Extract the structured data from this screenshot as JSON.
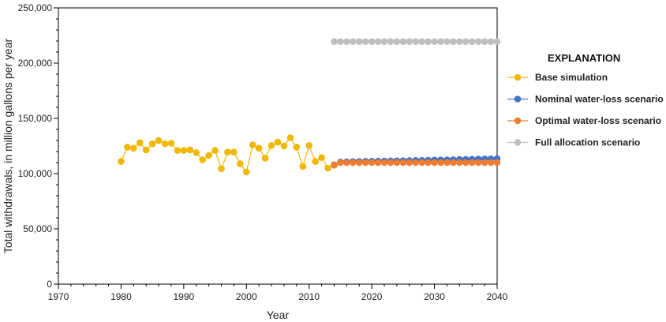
{
  "chart_data": {
    "type": "line",
    "xlabel": "Year",
    "ylabel": "Total withdrawals, in million gallons per year",
    "xlim": [
      1970,
      2040
    ],
    "ylim": [
      0,
      250000
    ],
    "x_ticks": [
      1970,
      1980,
      1990,
      2000,
      2010,
      2020,
      2030,
      2040
    ],
    "x_tick_labels": [
      "1970",
      "1980",
      "1990",
      "2000",
      "2010",
      "2020",
      "2030",
      "2040"
    ],
    "y_ticks": [
      0,
      50000,
      100000,
      150000,
      200000,
      250000
    ],
    "y_tick_labels": [
      "0",
      "50,000",
      "100,000",
      "150,000",
      "200,000",
      "250,000"
    ],
    "grid": false,
    "legend_title": "EXPLANATION",
    "legend_position": "right",
    "series": [
      {
        "name": "Base simulation",
        "color": "#f2b705",
        "points": [
          [
            1980,
            111000
          ],
          [
            1981,
            124000
          ],
          [
            1982,
            123000
          ],
          [
            1983,
            128000
          ],
          [
            1984,
            121500
          ],
          [
            1985,
            127000
          ],
          [
            1986,
            130000
          ],
          [
            1987,
            127000
          ],
          [
            1988,
            127500
          ],
          [
            1989,
            121000
          ],
          [
            1990,
            121000
          ],
          [
            1991,
            121500
          ],
          [
            1992,
            119000
          ],
          [
            1993,
            112500
          ],
          [
            1994,
            116500
          ],
          [
            1995,
            121000
          ],
          [
            1996,
            104500
          ],
          [
            1997,
            119500
          ],
          [
            1998,
            119500
          ],
          [
            1999,
            109000
          ],
          [
            2000,
            101500
          ],
          [
            2001,
            126000
          ],
          [
            2002,
            123000
          ],
          [
            2003,
            114000
          ],
          [
            2004,
            125500
          ],
          [
            2005,
            128500
          ],
          [
            2006,
            125000
          ],
          [
            2007,
            132500
          ],
          [
            2008,
            124000
          ],
          [
            2009,
            106500
          ],
          [
            2010,
            125500
          ],
          [
            2011,
            111000
          ],
          [
            2012,
            114500
          ],
          [
            2013,
            105000
          ],
          [
            2014,
            107500
          ]
        ]
      },
      {
        "name": "Nominal water-loss scenario",
        "color": "#4472c4",
        "points": [
          [
            2014,
            108000
          ],
          [
            2015,
            110500
          ],
          [
            2016,
            110700
          ],
          [
            2017,
            110900
          ],
          [
            2018,
            111000
          ],
          [
            2019,
            111100
          ],
          [
            2020,
            111200
          ],
          [
            2021,
            111300
          ],
          [
            2022,
            111400
          ],
          [
            2023,
            111500
          ],
          [
            2024,
            111600
          ],
          [
            2025,
            111700
          ],
          [
            2026,
            111800
          ],
          [
            2027,
            111900
          ],
          [
            2028,
            112000
          ],
          [
            2029,
            112100
          ],
          [
            2030,
            112300
          ],
          [
            2031,
            112400
          ],
          [
            2032,
            112500
          ],
          [
            2033,
            112600
          ],
          [
            2034,
            112800
          ],
          [
            2035,
            112900
          ],
          [
            2036,
            113000
          ],
          [
            2037,
            113200
          ],
          [
            2038,
            113300
          ],
          [
            2039,
            113400
          ],
          [
            2040,
            113500
          ]
        ]
      },
      {
        "name": "Optimal water-loss scenario",
        "color": "#ed7d31",
        "points": [
          [
            2014,
            108000
          ],
          [
            2015,
            110000
          ],
          [
            2016,
            110000
          ],
          [
            2017,
            110000
          ],
          [
            2018,
            110000
          ],
          [
            2019,
            110000
          ],
          [
            2020,
            110000
          ],
          [
            2021,
            110000
          ],
          [
            2022,
            110000
          ],
          [
            2023,
            110000
          ],
          [
            2024,
            110000
          ],
          [
            2025,
            110000
          ],
          [
            2026,
            110000
          ],
          [
            2027,
            110000
          ],
          [
            2028,
            110000
          ],
          [
            2029,
            110000
          ],
          [
            2030,
            110000
          ],
          [
            2031,
            110000
          ],
          [
            2032,
            110000
          ],
          [
            2033,
            110000
          ],
          [
            2034,
            110000
          ],
          [
            2035,
            110000
          ],
          [
            2036,
            110000
          ],
          [
            2037,
            110000
          ],
          [
            2038,
            110000
          ],
          [
            2039,
            110000
          ],
          [
            2040,
            110000
          ]
        ]
      },
      {
        "name": "Full allocation scenario",
        "color": "#bfbfbf",
        "points": [
          [
            2014,
            219500
          ],
          [
            2015,
            219500
          ],
          [
            2016,
            219500
          ],
          [
            2017,
            219500
          ],
          [
            2018,
            219500
          ],
          [
            2019,
            219500
          ],
          [
            2020,
            219500
          ],
          [
            2021,
            219500
          ],
          [
            2022,
            219500
          ],
          [
            2023,
            219500
          ],
          [
            2024,
            219500
          ],
          [
            2025,
            219500
          ],
          [
            2026,
            219500
          ],
          [
            2027,
            219500
          ],
          [
            2028,
            219500
          ],
          [
            2029,
            219500
          ],
          [
            2030,
            219500
          ],
          [
            2031,
            219500
          ],
          [
            2032,
            219500
          ],
          [
            2033,
            219500
          ],
          [
            2034,
            219500
          ],
          [
            2035,
            219500
          ],
          [
            2036,
            219500
          ],
          [
            2037,
            219500
          ],
          [
            2038,
            219500
          ],
          [
            2039,
            219500
          ],
          [
            2040,
            219500
          ]
        ]
      }
    ]
  }
}
